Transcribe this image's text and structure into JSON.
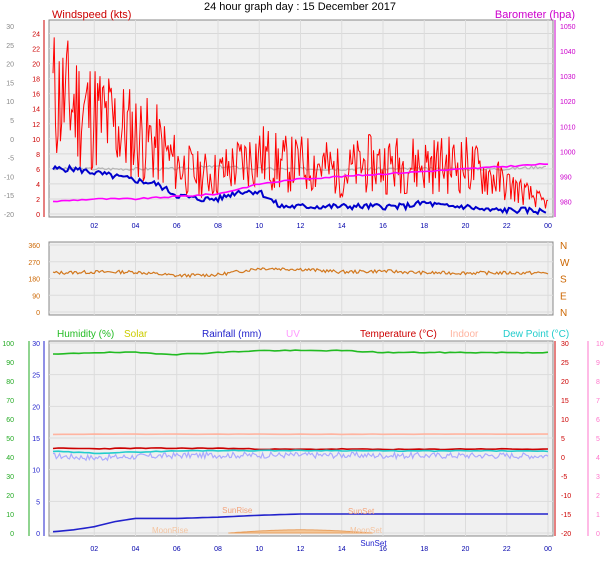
{
  "title": "24 hour graph day : 15 December 2017",
  "colors": {
    "windspeed": "#ff0000",
    "gust": "#ff0000",
    "wind_avg": "#0000cc",
    "barometer": "#ff00ff",
    "barometer_trace": "#b4b4b4",
    "direction": "#d2781e",
    "humidity": "#22bb22",
    "solar": "#cccc00",
    "rainfall": "#2222cc",
    "uv": "#ff99ff",
    "temperature": "#cc0000",
    "indoor": "#ffb4a0",
    "dewpoint": "#22cccc",
    "dew_trace": "#aaaaff",
    "time_labels": "#0000aa"
  },
  "chart_data": [
    {
      "type": "line",
      "left_axis_label": "Windspeed (kts)",
      "right_axis_label": "Barometer (hpa)",
      "outer_axis_ticks": [
        "-20",
        "-15",
        "-10",
        "-5",
        "0",
        "5",
        "10",
        "15",
        "20",
        "25",
        "30"
      ],
      "left_ylim": [
        0,
        25
      ],
      "left_ticks": [
        "0",
        "2",
        "4",
        "6",
        "8",
        "10",
        "12",
        "14",
        "16",
        "18",
        "20",
        "22",
        "24"
      ],
      "right_ylim": [
        975,
        1050
      ],
      "right_ticks": [
        "980",
        "990",
        "1000",
        "1010",
        "1020",
        "1030",
        "1040",
        "1050"
      ],
      "x_ticks": [
        "02",
        "04",
        "06",
        "08",
        "10",
        "12",
        "14",
        "16",
        "18",
        "20",
        "22",
        "00"
      ],
      "series": [
        {
          "key": "gust",
          "x": [
            0,
            1,
            2,
            3,
            4,
            5,
            6,
            7,
            8,
            9,
            10,
            11,
            12,
            13,
            14,
            15,
            16,
            17,
            18,
            19,
            20,
            21,
            22,
            23,
            24
          ],
          "values": [
            12,
            11,
            10,
            9,
            8,
            7,
            5,
            4,
            4,
            5,
            6,
            5,
            5,
            5,
            4,
            5,
            5,
            5,
            5,
            5,
            5,
            4,
            3,
            2,
            1
          ]
        },
        {
          "key": "wind_avg",
          "x": [
            0,
            1,
            2,
            3,
            4,
            5,
            6,
            7,
            8,
            9,
            10,
            11,
            12,
            13,
            14,
            15,
            16,
            17,
            18,
            19,
            20,
            21,
            22,
            23,
            24
          ],
          "values": [
            6,
            6,
            5.5,
            5,
            4.5,
            4,
            2.5,
            2,
            2,
            3,
            3,
            1,
            1,
            1,
            1,
            1,
            1,
            1,
            1.5,
            1,
            1,
            0.5,
            0.5,
            0.5,
            0.3
          ]
        },
        {
          "key": "barometer",
          "x": [
            0,
            2,
            4,
            6,
            8,
            10,
            12,
            14,
            16,
            18,
            20,
            22,
            24
          ],
          "values": [
            980,
            981,
            981,
            982,
            983,
            987,
            989,
            990,
            991,
            992,
            993,
            994,
            995
          ]
        },
        {
          "key": "barometer_trace",
          "x": [
            0,
            2,
            4,
            6,
            8,
            10,
            12,
            14,
            16,
            18,
            20,
            22,
            24
          ],
          "values": [
            993,
            993,
            993,
            993,
            994,
            993,
            993,
            993,
            993,
            993,
            993,
            993,
            994
          ]
        }
      ]
    },
    {
      "type": "line",
      "left_ticks": [
        "0",
        "90",
        "180",
        "270",
        "360"
      ],
      "left_ylim": [
        0,
        360
      ],
      "right_ticks": [
        "N",
        "E",
        "S",
        "W",
        "N"
      ],
      "series": [
        {
          "key": "direction",
          "x": [
            0,
            2,
            4,
            6,
            8,
            10,
            12,
            14,
            16,
            18,
            20,
            22,
            24
          ],
          "values": [
            210,
            215,
            215,
            195,
            200,
            235,
            230,
            215,
            220,
            210,
            210,
            210,
            210
          ]
        }
      ]
    },
    {
      "type": "line",
      "legend": [
        "Humidity (%)",
        "Solar",
        "Rainfall (mm)",
        "UV",
        "Temperature (°C)",
        "Indoor",
        "Dew Point (°C)"
      ],
      "outer_left_ticks": [
        "0",
        "10",
        "20",
        "30",
        "40",
        "50",
        "60",
        "70",
        "80",
        "90",
        "100"
      ],
      "left_ticks": [
        "0",
        "5",
        "10",
        "15",
        "20",
        "25",
        "30"
      ],
      "left_ylim": [
        0,
        30
      ],
      "right_ticks": [
        "-20",
        "-15",
        "-10",
        "-5",
        "0",
        "5",
        "10",
        "15",
        "20",
        "25",
        "30"
      ],
      "outer_right_ticks": [
        "0",
        "1",
        "2",
        "3",
        "4",
        "5",
        "6",
        "7",
        "8",
        "9",
        "10"
      ],
      "x_ticks": [
        "02",
        "04",
        "06",
        "08",
        "10",
        "12",
        "14",
        "16",
        "18",
        "20",
        "22",
        "00"
      ],
      "annotations": [
        "SunRise",
        "SunSet",
        "MoonRise",
        "MoonSet"
      ],
      "series": [
        {
          "key": "humidity",
          "x": [
            0,
            2,
            4,
            6,
            8,
            10,
            12,
            14,
            16,
            18,
            20,
            22,
            24
          ],
          "values": [
            94,
            95,
            95,
            94,
            95,
            96,
            96,
            96,
            95,
            95,
            95,
            95,
            95
          ]
        },
        {
          "key": "rainfall",
          "x": [
            0,
            1,
            2,
            3,
            4,
            6,
            8,
            10,
            12,
            14,
            16,
            18,
            20,
            22,
            24
          ],
          "values": [
            0.2,
            0.5,
            1,
            1.8,
            2.3,
            2.3,
            2.5,
            2.8,
            3,
            3,
            3,
            3,
            3,
            3,
            3
          ]
        },
        {
          "key": "temperature",
          "x": [
            0,
            2,
            4,
            6,
            8,
            10,
            12,
            14,
            16,
            18,
            20,
            22,
            24
          ],
          "values": [
            2.3,
            2.2,
            2.3,
            2.3,
            2.3,
            2.1,
            2,
            2.1,
            2,
            2,
            2.1,
            2.1,
            2
          ]
        },
        {
          "key": "indoor",
          "x": [
            0,
            24
          ],
          "values": [
            6,
            6
          ]
        },
        {
          "key": "dewpoint",
          "x": [
            0,
            2,
            4,
            6,
            8,
            10,
            12,
            14,
            16,
            18,
            20,
            22,
            24
          ],
          "values": [
            1.5,
            1,
            1.3,
            1.6,
            1.7,
            1.7,
            1.7,
            1.7,
            1.6,
            1.6,
            1.6,
            1.6,
            1.5
          ]
        }
      ]
    }
  ]
}
